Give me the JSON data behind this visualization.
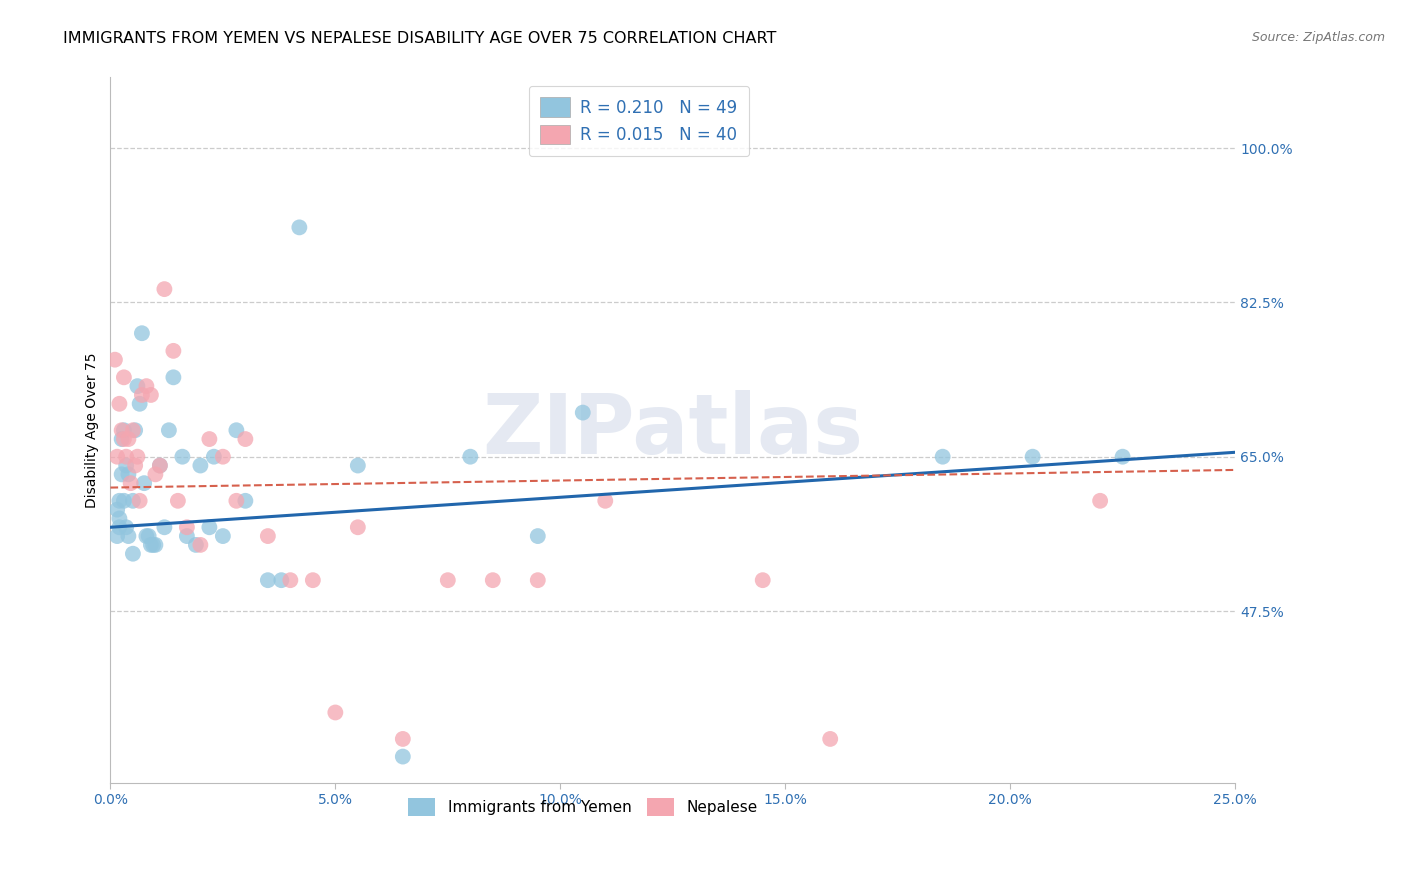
{
  "title": "IMMIGRANTS FROM YEMEN VS NEPALESE DISABILITY AGE OVER 75 CORRELATION CHART",
  "source": "Source: ZipAtlas.com",
  "ylabel": "Disability Age Over 75",
  "xlim": [
    0.0,
    25.0
  ],
  "ylim": [
    28.0,
    108.0
  ],
  "xticks": [
    0.0,
    5.0,
    10.0,
    15.0,
    20.0,
    25.0
  ],
  "xticklabels": [
    "0.0%",
    "5.0%",
    "10.0%",
    "15.0%",
    "20.0%",
    "25.0%"
  ],
  "yticks": [
    47.5,
    65.0,
    82.5,
    100.0
  ],
  "yticklabels": [
    "47.5%",
    "65.0%",
    "82.5%",
    "100.0%"
  ],
  "blue_color": "#92c5de",
  "pink_color": "#f4a6b0",
  "blue_line_color": "#2166ac",
  "pink_line_color": "#d6604d",
  "watermark": "ZIPatlas",
  "blue_scatter_x": [
    0.15,
    0.15,
    0.2,
    0.2,
    0.2,
    0.25,
    0.25,
    0.3,
    0.3,
    0.35,
    0.35,
    0.4,
    0.4,
    0.5,
    0.5,
    0.55,
    0.6,
    0.65,
    0.7,
    0.75,
    0.8,
    0.85,
    0.9,
    0.95,
    1.0,
    1.1,
    1.2,
    1.3,
    1.4,
    1.6,
    1.7,
    1.9,
    2.0,
    2.2,
    2.3,
    2.5,
    2.8,
    3.0,
    3.5,
    3.8,
    4.2,
    5.5,
    6.5,
    8.0,
    9.5,
    10.5,
    18.5,
    20.5,
    22.5
  ],
  "blue_scatter_y": [
    56,
    59,
    57,
    60,
    58,
    63,
    67,
    60,
    68,
    64,
    57,
    63,
    56,
    60,
    54,
    68,
    73,
    71,
    79,
    62,
    56,
    56,
    55,
    55,
    55,
    64,
    57,
    68,
    74,
    65,
    56,
    55,
    64,
    57,
    65,
    56,
    68,
    60,
    51,
    51,
    91,
    64,
    31,
    65,
    56,
    70,
    65,
    65,
    65
  ],
  "pink_scatter_x": [
    0.1,
    0.15,
    0.2,
    0.25,
    0.3,
    0.3,
    0.35,
    0.4,
    0.45,
    0.5,
    0.55,
    0.6,
    0.65,
    0.7,
    0.8,
    0.9,
    1.0,
    1.1,
    1.2,
    1.4,
    1.5,
    1.7,
    2.0,
    2.2,
    2.5,
    2.8,
    3.0,
    3.5,
    4.0,
    4.5,
    5.0,
    5.5,
    6.5,
    7.5,
    8.5,
    9.5,
    11.0,
    14.5,
    16.0,
    22.0
  ],
  "pink_scatter_y": [
    76,
    65,
    71,
    68,
    74,
    67,
    65,
    67,
    62,
    68,
    64,
    65,
    60,
    72,
    73,
    72,
    63,
    64,
    84,
    77,
    60,
    57,
    55,
    67,
    65,
    60,
    67,
    56,
    51,
    51,
    36,
    57,
    33,
    51,
    51,
    51,
    60,
    51,
    33,
    60
  ],
  "blue_trend_x": [
    0.0,
    25.0
  ],
  "blue_trend_y": [
    57.0,
    65.5
  ],
  "pink_trend_x": [
    0.0,
    25.0
  ],
  "pink_trend_y": [
    61.5,
    63.5
  ],
  "title_fontsize": 11.5,
  "axis_label_fontsize": 10,
  "tick_fontsize": 10,
  "source_fontsize": 9,
  "legend_fontsize": 12
}
